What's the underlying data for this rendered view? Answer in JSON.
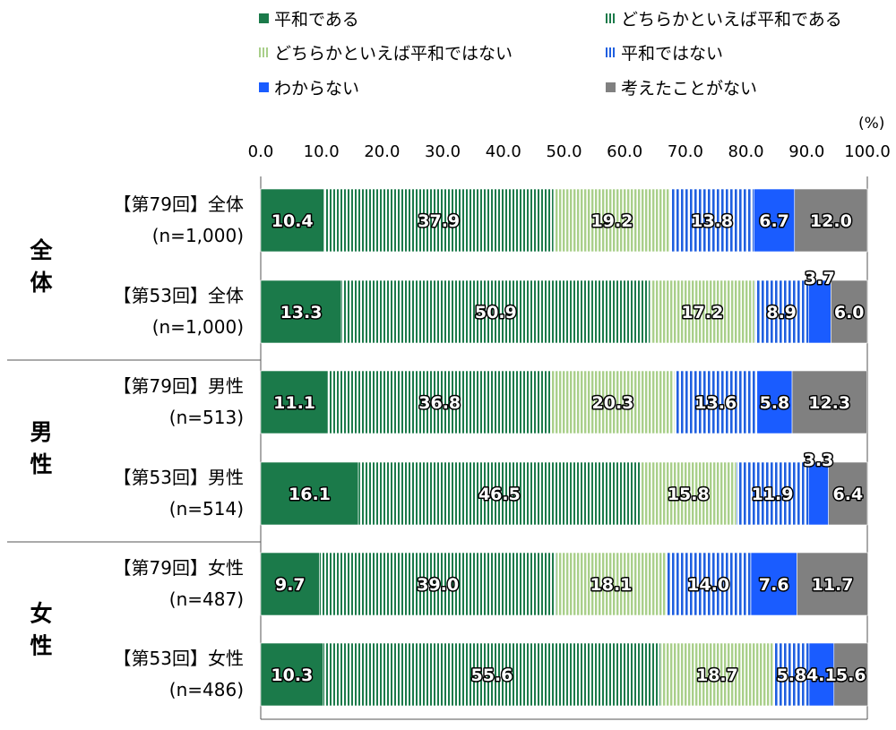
{
  "legend": {
    "items": [
      {
        "label": "平和である",
        "color": "#1b7a4a",
        "pattern": "solid"
      },
      {
        "label": "どちらかといえば平和である",
        "color": "#1b7a4a",
        "pattern": "stripe-dark"
      },
      {
        "label": "どちらかといえば平和ではない",
        "color": "#a9cf8a",
        "pattern": "stripe-light"
      },
      {
        "label": "平和ではない",
        "color": "#1f5fe0",
        "pattern": "stripe-blue"
      },
      {
        "label": "わからない",
        "color": "#1a5cff",
        "pattern": "solid"
      },
      {
        "label": "考えたことがない",
        "color": "#808080",
        "pattern": "solid"
      }
    ]
  },
  "chart_data": {
    "type": "bar",
    "orientation": "horizontal",
    "stacked": true,
    "unit": "(%)",
    "xlim": [
      0,
      100
    ],
    "ticks": [
      "0.0",
      "10.0",
      "20.0",
      "30.0",
      "40.0",
      "50.0",
      "60.0",
      "70.0",
      "80.0",
      "90.0",
      "100.0"
    ],
    "groups": [
      {
        "label": "全体",
        "rows": [
          0,
          1
        ]
      },
      {
        "label": "男性",
        "rows": [
          2,
          3
        ]
      },
      {
        "label": "女性",
        "rows": [
          4,
          5
        ]
      }
    ],
    "rows": [
      {
        "label": "【第79回】全体",
        "n": "(n=1,000)",
        "values": [
          "10.4",
          "37.9",
          "19.2",
          "13.8",
          "6.7",
          "12.0"
        ]
      },
      {
        "label": "【第53回】全体",
        "n": "(n=1,000)",
        "values": [
          "13.3",
          "50.9",
          "17.2",
          "8.9",
          "3.7",
          "6.0"
        ]
      },
      {
        "label": "【第79回】男性",
        "n": "(n=513)",
        "values": [
          "11.1",
          "36.8",
          "20.3",
          "13.6",
          "5.8",
          "12.3"
        ]
      },
      {
        "label": "【第53回】男性",
        "n": "(n=514)",
        "values": [
          "16.1",
          "46.5",
          "15.8",
          "11.9",
          "3.3",
          "6.4"
        ]
      },
      {
        "label": "【第79回】女性",
        "n": "(n=487)",
        "values": [
          "9.7",
          "39.0",
          "18.1",
          "14.0",
          "7.6",
          "11.7"
        ]
      },
      {
        "label": "【第53回】女性",
        "n": "(n=486)",
        "values": [
          "10.3",
          "55.6",
          "18.7",
          "5.8",
          "4.1",
          "5.6"
        ]
      }
    ]
  }
}
